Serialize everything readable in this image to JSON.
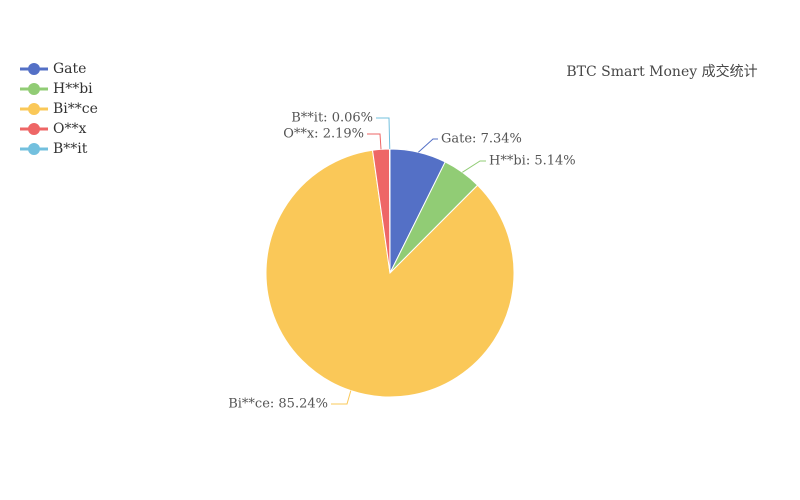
{
  "chart_data": {
    "type": "pie",
    "title": "BTC Smart Money 成交统计",
    "categories": [
      "Gate",
      "H**bi",
      "Bi**ce",
      "O**x",
      "B**it"
    ],
    "values": [
      7.34,
      5.14,
      85.24,
      2.19,
      0.06
    ],
    "value_labels": [
      "Gate: 7.34%",
      "H**bi: 5.14%",
      "Bi**ce: 85.24%",
      "O**x: 2.19%",
      "B**it: 0.06%"
    ],
    "colors": [
      "#5470c6",
      "#91cc75",
      "#fac858",
      "#ee6666",
      "#73c0de"
    ],
    "legend": "top-left"
  }
}
